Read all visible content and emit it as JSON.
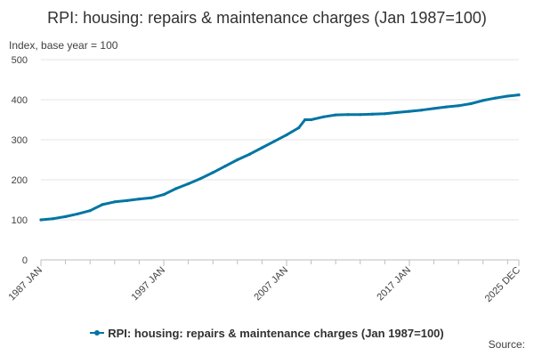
{
  "colors": {
    "series": "#0075a3",
    "grid": "#e6e6e6",
    "axis": "#bebebe",
    "text": "#323132"
  },
  "chart_data": {
    "type": "line",
    "title": "RPI: housing: repairs & maintenance charges (Jan 1987=100)",
    "ylabel": "Index, base year = 100",
    "xlabel": "",
    "ylim": [
      0,
      500
    ],
    "yticks": [
      0,
      100,
      200,
      300,
      400,
      500
    ],
    "xlim": [
      1987.0,
      2025.917
    ],
    "xticks": [
      {
        "value": 1987.0,
        "label": "1987 JAN"
      },
      {
        "value": 1997.0,
        "label": "1997 JAN"
      },
      {
        "value": 2007.0,
        "label": "2007 JAN"
      },
      {
        "value": 2017.0,
        "label": "2017 JAN"
      },
      {
        "value": 2025.917,
        "label": "2025 DEC"
      }
    ],
    "grid": true,
    "legend_position": "bottom",
    "series": [
      {
        "name": "RPI: housing: repairs & maintenance charges (Jan 1987=100)",
        "x": [
          1987.0,
          1988.0,
          1989.0,
          1990.0,
          1991.0,
          1992.0,
          1993.0,
          1994.0,
          1995.0,
          1996.0,
          1997.0,
          1998.0,
          1999.0,
          2000.0,
          2001.0,
          2002.0,
          2003.0,
          2004.0,
          2005.0,
          2006.0,
          2007.0,
          2008.0,
          2008.5,
          2009.0,
          2010.0,
          2011.0,
          2012.0,
          2013.0,
          2014.0,
          2015.0,
          2016.0,
          2017.0,
          2018.0,
          2019.0,
          2020.0,
          2021.0,
          2022.0,
          2023.0,
          2024.0,
          2025.0,
          2025.917
        ],
        "values": [
          100,
          103,
          108,
          115,
          123,
          138,
          145,
          148,
          152,
          155,
          163,
          178,
          190,
          203,
          218,
          234,
          250,
          264,
          280,
          296,
          312,
          330,
          350,
          350,
          357,
          362,
          363,
          363,
          364,
          365,
          368,
          371,
          374,
          378,
          382,
          385,
          390,
          398,
          404,
          409,
          412
        ]
      }
    ]
  },
  "legend": {
    "label": "RPI: housing: repairs & maintenance charges (Jan 1987=100)"
  },
  "source_label": "Source:"
}
